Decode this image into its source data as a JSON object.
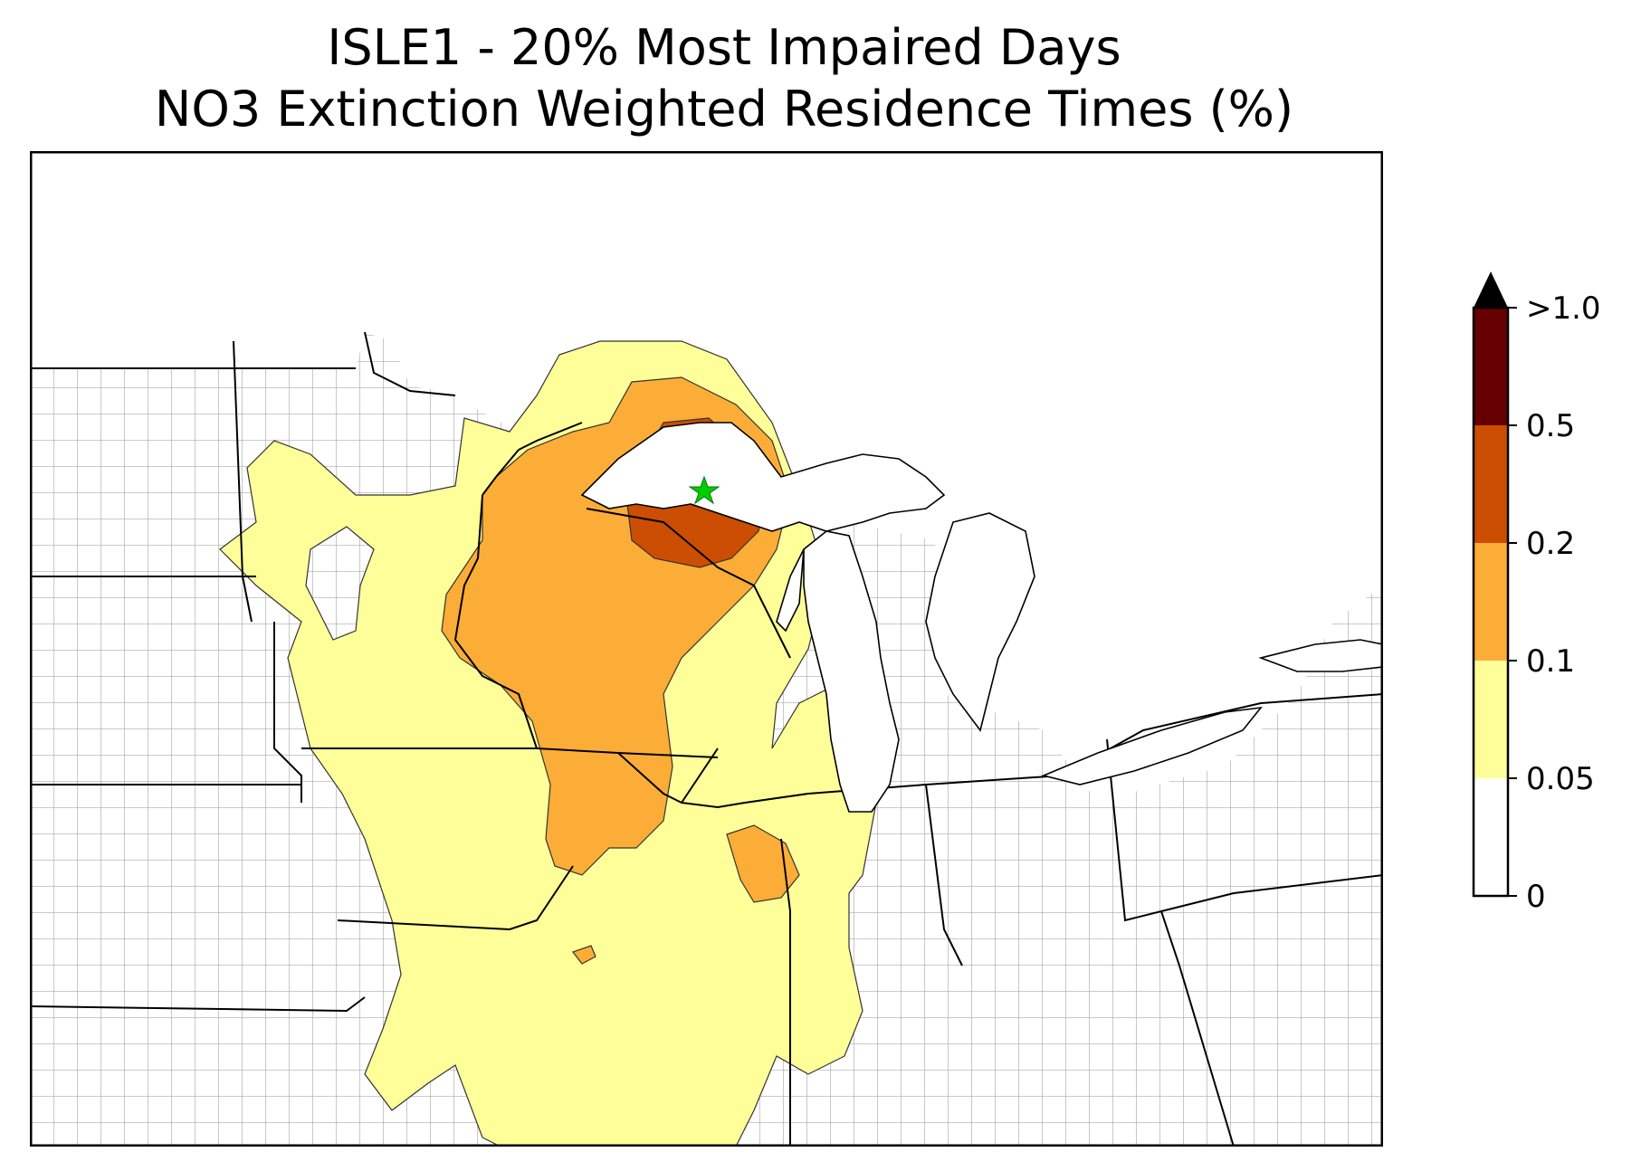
{
  "title": {
    "line1": "ISLE1 - 20% Most Impaired Days",
    "line2": "NO3 Extinction Weighted Residence Times (%)"
  },
  "colorbar": {
    "levels": [
      {
        "label": "0",
        "color": "#ffffff"
      },
      {
        "label": "0.05",
        "color": "#ffff99"
      },
      {
        "label": "0.1",
        "color": "#fbad37"
      },
      {
        "label": "0.2",
        "color": "#cc4e02"
      },
      {
        "label": "0.5",
        "color": "#660000"
      },
      {
        "label": ">1.0",
        "color": "#000000"
      }
    ]
  },
  "site_marker": {
    "color": "#00cc00",
    "shape": "star"
  },
  "map_colors": {
    "state_border": "#000000",
    "county_border": "#aaaaaa",
    "contour_edge": "#333333"
  }
}
